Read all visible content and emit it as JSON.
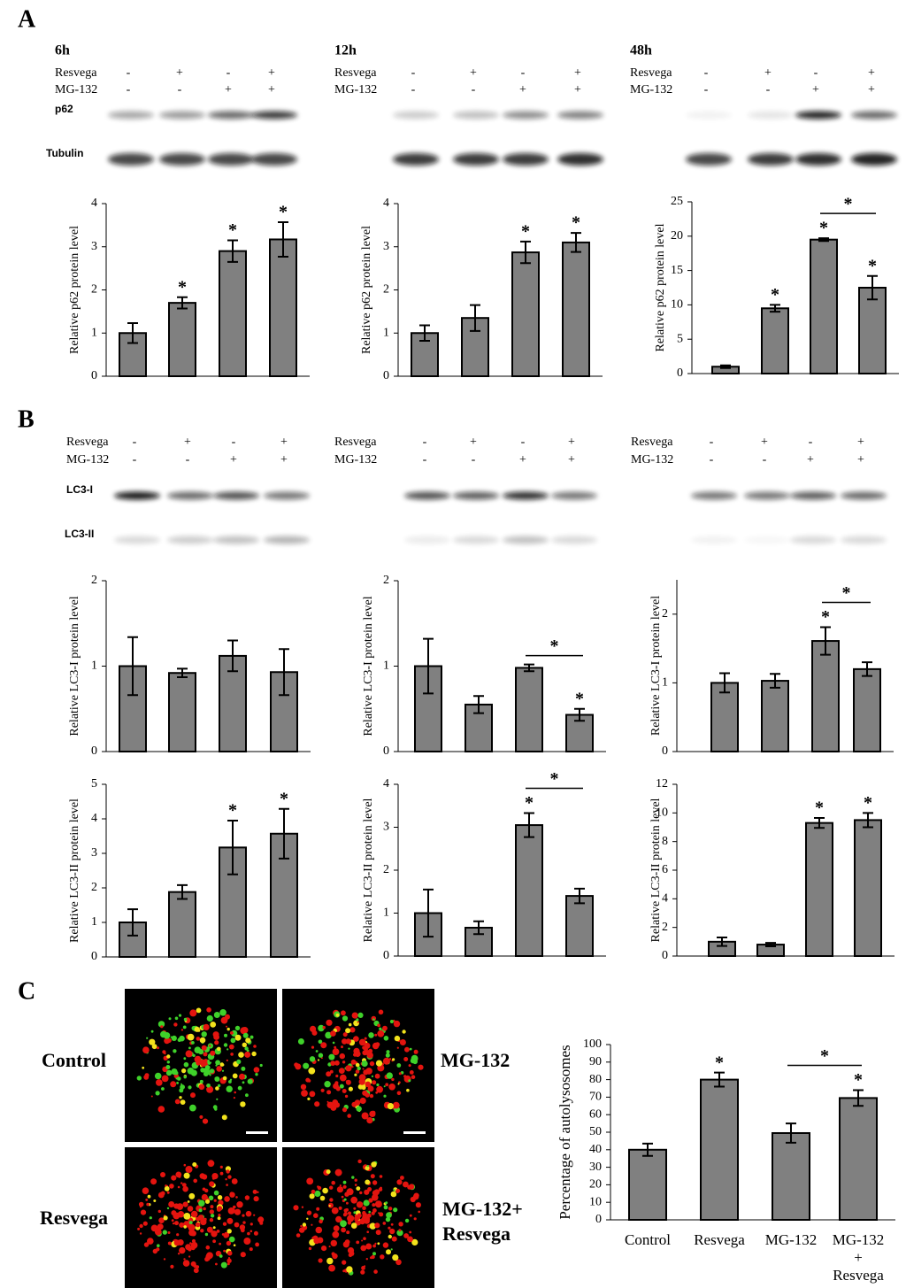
{
  "panel_labels": [
    "A",
    "B",
    "C"
  ],
  "panel_a": {
    "bands": [
      "p62",
      "Tubulin"
    ],
    "columns": [
      {
        "time": "6h",
        "rows": [
          {
            "label": "Resvega",
            "signs": [
              "-",
              "+",
              "-",
              "+"
            ]
          },
          {
            "label": "MG-132",
            "signs": [
              "-",
              "-",
              "+",
              "+"
            ]
          }
        ]
      },
      {
        "time": "12h",
        "rows": [
          {
            "label": "Resvega",
            "signs": [
              "-",
              "+",
              "-",
              "+"
            ]
          },
          {
            "label": "MG-132",
            "signs": [
              "-",
              "-",
              "+",
              "+"
            ]
          }
        ]
      },
      {
        "time": "48h",
        "rows": [
          {
            "label": "Resvega",
            "signs": [
              "-",
              "+",
              "-",
              "+"
            ]
          },
          {
            "label": "MG-132",
            "signs": [
              "-",
              "-",
              "+",
              "+"
            ]
          }
        ]
      }
    ]
  },
  "panel_b": {
    "bands": [
      "LC3-I",
      "LC3-II"
    ],
    "columns": [
      {
        "rows": [
          {
            "label": "Resvega",
            "signs": [
              "-",
              "+",
              "-",
              "+"
            ]
          },
          {
            "label": "MG-132",
            "signs": [
              "-",
              "-",
              "+",
              "+"
            ]
          }
        ]
      },
      {
        "rows": [
          {
            "label": "Resvega",
            "signs": [
              "-",
              "+",
              "-",
              "+"
            ]
          },
          {
            "label": "MG-132",
            "signs": [
              "-",
              "-",
              "+",
              "+"
            ]
          }
        ]
      },
      {
        "rows": [
          {
            "label": "Resvega",
            "signs": [
              "-",
              "+",
              "-",
              "+"
            ]
          },
          {
            "label": "MG-132",
            "signs": [
              "-",
              "-",
              "+",
              "+"
            ]
          }
        ]
      }
    ]
  },
  "panel_c": {
    "image_labels": [
      "Control",
      "MG-132",
      "Resvega",
      "MG-132+\nResvega"
    ]
  },
  "chart_data": [
    {
      "type": "bar",
      "y_label": "Relative p62 protein level",
      "categories": [
        null,
        null,
        null,
        null
      ],
      "values": [
        1,
        1.7,
        2.9,
        3.17
      ],
      "errors": [
        0.23,
        0.13,
        0.25,
        0.4
      ],
      "markers": [
        null,
        "*",
        "*",
        "*"
      ],
      "brackets": [],
      "ylim": [
        0,
        4
      ],
      "yticks": [
        0,
        1,
        2,
        3,
        4
      ],
      "color": "#808080"
    },
    {
      "type": "bar",
      "y_label": "Relative p62 protein level",
      "categories": [
        null,
        null,
        null,
        null
      ],
      "values": [
        1,
        1.35,
        2.87,
        3.1
      ],
      "errors": [
        0.18,
        0.3,
        0.25,
        0.22
      ],
      "markers": [
        null,
        null,
        "*",
        "*"
      ],
      "brackets": [],
      "ylim": [
        0,
        4
      ],
      "yticks": [
        0,
        1,
        2,
        3,
        4
      ],
      "color": "#808080"
    },
    {
      "type": "bar",
      "y_label": "Relative p62 protein level",
      "categories": [
        null,
        null,
        null,
        null
      ],
      "values": [
        1,
        9.5,
        19.5,
        12.5
      ],
      "errors": [
        0.2,
        0.5,
        0.2,
        1.7
      ],
      "markers": [
        null,
        "*",
        "*",
        "*"
      ],
      "brackets": [
        {
          "between": [
            2,
            3
          ],
          "label": "*"
        }
      ],
      "ylim": [
        0,
        25
      ],
      "yticks": [
        0,
        5,
        10,
        15,
        20,
        25
      ],
      "color": "#808080"
    },
    {
      "type": "bar",
      "y_label": "Relative LC3-I protein level",
      "categories": [
        null,
        null,
        null,
        null
      ],
      "values": [
        1,
        0.92,
        1.12,
        0.93
      ],
      "errors": [
        0.34,
        0.05,
        0.18,
        0.27
      ],
      "markers": [
        null,
        null,
        null,
        null
      ],
      "brackets": [],
      "ylim": [
        0,
        2
      ],
      "yticks": [
        0,
        1,
        2
      ],
      "color": "#808080"
    },
    {
      "type": "bar",
      "y_label": "Relative LC3-I protein level",
      "categories": [
        null,
        null,
        null,
        null
      ],
      "values": [
        1,
        0.55,
        0.98,
        0.43
      ],
      "errors": [
        0.32,
        0.1,
        0.04,
        0.07
      ],
      "markers": [
        null,
        null,
        null,
        "*"
      ],
      "brackets": [
        {
          "between": [
            2,
            3
          ],
          "label": "*"
        }
      ],
      "ylim": [
        0,
        2
      ],
      "yticks": [
        0,
        1,
        2
      ],
      "color": "#808080"
    },
    {
      "type": "bar",
      "y_label": "Relative LC3-I protein level",
      "categories": [
        null,
        null,
        null,
        null
      ],
      "values": [
        1,
        1.03,
        1.61,
        1.2
      ],
      "errors": [
        0.14,
        0.1,
        0.2,
        0.1
      ],
      "markers": [
        null,
        null,
        "*",
        null
      ],
      "brackets": [
        {
          "between": [
            2,
            3
          ],
          "label": "*"
        }
      ],
      "ylim": [
        0,
        2.5
      ],
      "yticks": [
        0,
        1,
        2
      ],
      "color": "#808080"
    },
    {
      "type": "bar",
      "y_label": "Relative LC3-II protein level",
      "categories": [
        null,
        null,
        null,
        null
      ],
      "values": [
        1,
        1.88,
        3.17,
        3.57
      ],
      "errors": [
        0.38,
        0.2,
        0.78,
        0.72
      ],
      "markers": [
        null,
        null,
        "*",
        "*"
      ],
      "brackets": [],
      "ylim": [
        0,
        5
      ],
      "yticks": [
        0,
        1,
        2,
        3,
        4,
        5
      ],
      "color": "#808080"
    },
    {
      "type": "bar",
      "y_label": "Relative LC3-II protein level",
      "categories": [
        null,
        null,
        null,
        null
      ],
      "values": [
        1,
        0.66,
        3.05,
        1.4
      ],
      "errors": [
        0.55,
        0.15,
        0.28,
        0.17
      ],
      "markers": [
        null,
        null,
        "*",
        null
      ],
      "brackets": [
        {
          "between": [
            2,
            3
          ],
          "label": "*"
        }
      ],
      "ylim": [
        0,
        4
      ],
      "yticks": [
        0,
        1,
        2,
        3,
        4
      ],
      "color": "#808080"
    },
    {
      "type": "bar",
      "y_label": "Relative LC3-II protein level",
      "categories": [
        null,
        null,
        null,
        null
      ],
      "values": [
        1,
        0.8,
        9.3,
        9.5
      ],
      "errors": [
        0.3,
        0.12,
        0.35,
        0.5
      ],
      "markers": [
        null,
        null,
        "*",
        "*"
      ],
      "brackets": [],
      "ylim": [
        0,
        12
      ],
      "yticks": [
        0,
        2,
        4,
        6,
        8,
        10,
        12
      ],
      "color": "#808080"
    },
    {
      "type": "bar",
      "y_label": "Percentage of autolysosomes",
      "categories": [
        "Control",
        "Resvega",
        "MG-132",
        "MG-132\n+\nResvega"
      ],
      "values": [
        40,
        80,
        49.5,
        69.5
      ],
      "errors": [
        3.5,
        4,
        5.5,
        4.5
      ],
      "markers": [
        null,
        "*",
        null,
        "*"
      ],
      "brackets": [
        {
          "between": [
            2,
            3
          ],
          "label": "*"
        }
      ],
      "ylim": [
        0,
        100
      ],
      "yticks": [
        0,
        10,
        20,
        30,
        40,
        50,
        60,
        70,
        80,
        90,
        100
      ],
      "color": "#808080"
    }
  ]
}
